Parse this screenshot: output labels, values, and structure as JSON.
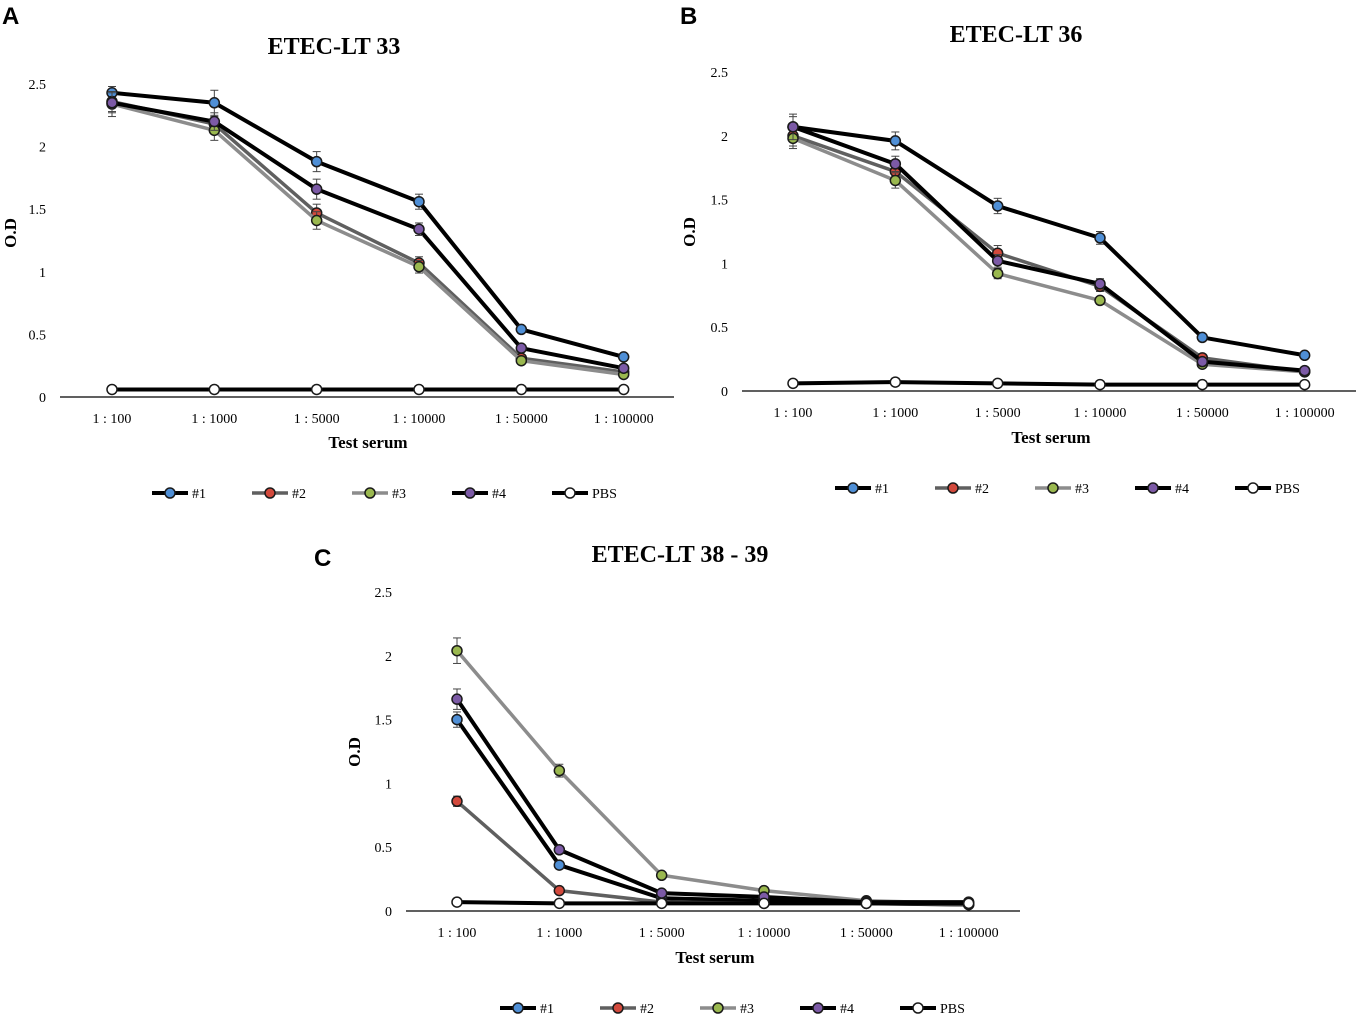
{
  "colors": {
    "line_black": "#000000",
    "line_gray": "#5f5f5f",
    "line_lightgray": "#8c8c8c",
    "m1": "#4f8fd6",
    "m2": "#d2493c",
    "m3": "#9ab84f",
    "m4": "#7c5aa6",
    "mPBS": "#ffffff"
  },
  "chart_data": [
    {
      "panel": "A",
      "type": "line",
      "title": "ETEC-LT 33",
      "xlabel": "Test serum",
      "ylabel": "O.D",
      "categories": [
        "1 : 100",
        "1 : 1000",
        "1 : 5000",
        "1 : 10000",
        "1 : 50000",
        "1 : 100000"
      ],
      "ylim": [
        0,
        2.5
      ],
      "yticks": [
        "0",
        "0.5",
        "1",
        "1.5",
        "2",
        "2.5"
      ],
      "legend": "bottom",
      "series": [
        {
          "name": "#1",
          "line": "line_black",
          "marker": "m1",
          "values": [
            2.43,
            2.35,
            1.88,
            1.56,
            0.54,
            0.32
          ],
          "errors": [
            0.05,
            0.1,
            0.08,
            0.06,
            0.02,
            0.02
          ]
        },
        {
          "name": "#2",
          "line": "line_gray",
          "marker": "m2",
          "values": [
            2.36,
            2.18,
            1.47,
            1.07,
            0.31,
            0.2
          ],
          "errors": [
            0.08,
            0.06,
            0.07,
            0.05,
            0.02,
            0.02
          ]
        },
        {
          "name": "#3",
          "line": "line_lightgray",
          "marker": "m3",
          "values": [
            2.34,
            2.13,
            1.41,
            1.04,
            0.29,
            0.18
          ],
          "errors": [
            0.1,
            0.08,
            0.07,
            0.05,
            0.02,
            0.02
          ]
        },
        {
          "name": "#4",
          "line": "line_black",
          "marker": "m4",
          "values": [
            2.35,
            2.2,
            1.66,
            1.34,
            0.39,
            0.23
          ],
          "errors": [
            0.08,
            0.07,
            0.08,
            0.05,
            0.02,
            0.02
          ]
        },
        {
          "name": "PBS",
          "line": "line_black",
          "marker": "mPBS",
          "values": [
            0.06,
            0.06,
            0.06,
            0.06,
            0.06,
            0.06
          ],
          "errors": [
            0.03,
            0.03,
            0.03,
            0.03,
            0.02,
            0.02
          ]
        }
      ]
    },
    {
      "panel": "B",
      "type": "line",
      "title": "ETEC-LT 36",
      "xlabel": "Test serum",
      "ylabel": "O.D",
      "categories": [
        "1 : 100",
        "1 : 1000",
        "1 : 5000",
        "1 : 10000",
        "1 : 50000",
        "1 : 100000"
      ],
      "ylim": [
        0,
        2.5
      ],
      "yticks": [
        "0",
        "0.5",
        "1",
        "1.5",
        "2",
        "2.5"
      ],
      "legend": "bottom",
      "series": [
        {
          "name": "#1",
          "line": "line_black",
          "marker": "m1",
          "values": [
            2.07,
            1.96,
            1.45,
            1.2,
            0.42,
            0.28
          ],
          "errors": [
            0.08,
            0.07,
            0.06,
            0.05,
            0.02,
            0.02
          ]
        },
        {
          "name": "#2",
          "line": "line_gray",
          "marker": "m2",
          "values": [
            2.0,
            1.72,
            1.08,
            0.82,
            0.26,
            0.15
          ],
          "errors": [
            0.08,
            0.06,
            0.06,
            0.04,
            0.02,
            0.02
          ]
        },
        {
          "name": "#3",
          "line": "line_lightgray",
          "marker": "m3",
          "values": [
            1.98,
            1.65,
            0.92,
            0.71,
            0.21,
            0.15
          ],
          "errors": [
            0.08,
            0.06,
            0.04,
            0.03,
            0.02,
            0.02
          ]
        },
        {
          "name": "#4",
          "line": "line_black",
          "marker": "m4",
          "values": [
            2.07,
            1.78,
            1.02,
            0.84,
            0.23,
            0.16
          ],
          "errors": [
            0.1,
            0.06,
            0.05,
            0.04,
            0.02,
            0.02
          ]
        },
        {
          "name": "PBS",
          "line": "line_black",
          "marker": "mPBS",
          "values": [
            0.06,
            0.07,
            0.06,
            0.05,
            0.05,
            0.05
          ],
          "errors": [
            0.03,
            0.03,
            0.02,
            0.02,
            0.02,
            0.02
          ]
        }
      ]
    },
    {
      "panel": "C",
      "type": "line",
      "title": "ETEC-LT 38 - 39",
      "xlabel": "Test serum",
      "ylabel": "O.D",
      "categories": [
        "1 : 100",
        "1 : 1000",
        "1 : 5000",
        "1 : 10000",
        "1 : 50000",
        "1 : 100000"
      ],
      "ylim": [
        0,
        2.5
      ],
      "yticks": [
        "0",
        "0.5",
        "1",
        "1.5",
        "2",
        "2.5"
      ],
      "legend": "bottom",
      "series": [
        {
          "name": "#1",
          "line": "line_black",
          "marker": "m1",
          "values": [
            1.5,
            0.36,
            0.1,
            0.08,
            0.06,
            0.05
          ],
          "errors": [
            0.06,
            0.03,
            0.02,
            0.02,
            0.01,
            0.01
          ]
        },
        {
          "name": "#2",
          "line": "line_gray",
          "marker": "m2",
          "values": [
            0.86,
            0.16,
            0.07,
            0.06,
            0.06,
            0.05
          ],
          "errors": [
            0.04,
            0.02,
            0.01,
            0.01,
            0.01,
            0.01
          ]
        },
        {
          "name": "#3",
          "line": "line_lightgray",
          "marker": "m3",
          "values": [
            2.04,
            1.1,
            0.28,
            0.16,
            0.08,
            0.06
          ],
          "errors": [
            0.1,
            0.05,
            0.02,
            0.02,
            0.01,
            0.01
          ]
        },
        {
          "name": "#4",
          "line": "line_black",
          "marker": "m4",
          "values": [
            1.66,
            0.48,
            0.14,
            0.11,
            0.07,
            0.07
          ],
          "errors": [
            0.08,
            0.03,
            0.02,
            0.02,
            0.01,
            0.01
          ]
        },
        {
          "name": "PBS",
          "line": "line_black",
          "marker": "mPBS",
          "values": [
            0.07,
            0.06,
            0.06,
            0.06,
            0.06,
            0.06
          ],
          "errors": [
            0.03,
            0.02,
            0.02,
            0.02,
            0.01,
            0.01
          ]
        }
      ]
    }
  ]
}
